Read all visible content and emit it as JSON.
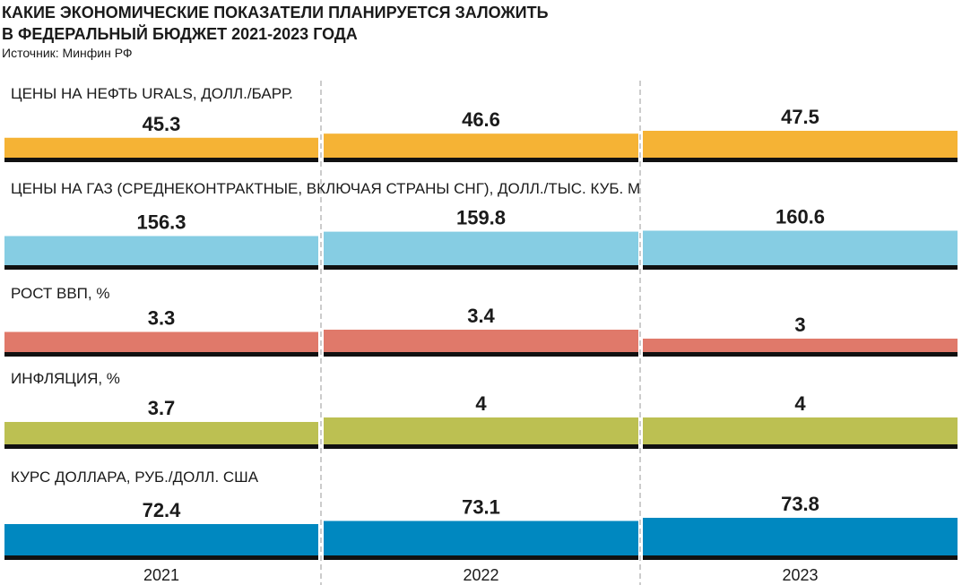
{
  "title": "КАКИЕ ЭКОНОМИЧЕСКИЕ ПОКАЗАТЕЛИ ПЛАНИРУЕТСЯ ЗАЛОЖИТЬ",
  "title_line2": "В ФЕДЕРАЛЬНЫЙ БЮДЖЕТ 2021-2023 ГОДА",
  "source": "Источник: Минфин РФ",
  "categories": [
    "2021",
    "2022",
    "2023"
  ],
  "chart_data": [
    {
      "type": "bar",
      "title": "ЦЕНЫ НА НЕФТЬ URALS, ДОЛЛ./БАРР.",
      "values": [
        45.3,
        46.6,
        47.5
      ],
      "color": "#f5b335",
      "ylim": [
        39,
        56
      ]
    },
    {
      "type": "bar",
      "title": "ЦЕНЫ НА ГАЗ (СРЕДНЕКОНТРАКТНЫЕ, ВКЛЮЧАЯ СТРАНЫ СНГ), ДОЛЛ./ТЫС. КУБ. М",
      "values": [
        156.3,
        159.8,
        160.6
      ],
      "color": "#86cde3",
      "ylim": [
        133,
        176
      ]
    },
    {
      "type": "bar",
      "title": "РОСТ ВВП, %",
      "values": [
        3.3,
        3.4,
        3
      ],
      "color": "#e0796a",
      "ylim": [
        2.4,
        4.8
      ]
    },
    {
      "type": "bar",
      "title": "ИНФЛЯЦИЯ, %",
      "values": [
        3.7,
        4,
        4
      ],
      "color": "#bcc052",
      "ylim": [
        2.2,
        5.8
      ]
    },
    {
      "type": "bar",
      "title": "КУРС ДОЛЛАРА, РУБ./ДОЛЛ. США",
      "values": [
        72.4,
        73.1,
        73.8
      ],
      "color": "#0088c0",
      "ylim": [
        65.4,
        77.4
      ]
    }
  ]
}
